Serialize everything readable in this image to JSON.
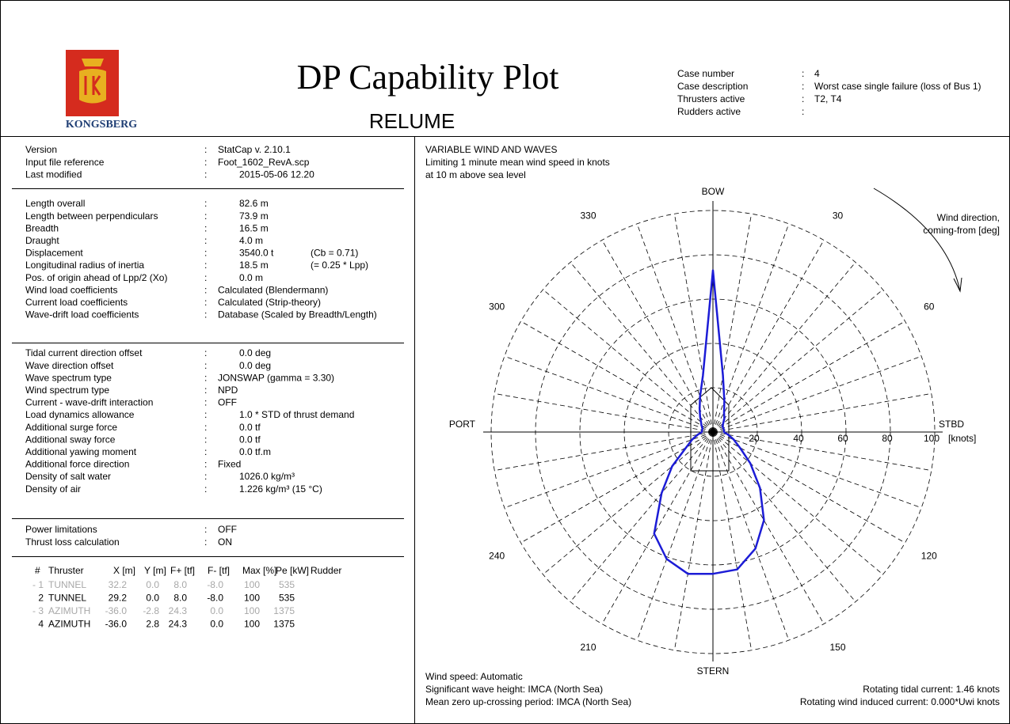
{
  "header": {
    "logo_text": "KONGSBERG",
    "title": "DP Capability Plot",
    "subtitle": "RELUME",
    "case": [
      [
        "Case number",
        ":",
        "4"
      ],
      [
        "Case description",
        ":",
        "Worst case single failure (loss of Bus 1)"
      ],
      [
        "Thrusters active",
        ":",
        "T2, T4"
      ],
      [
        "Rudders active",
        ":"
      ]
    ]
  },
  "details": [
    [
      [
        "Version",
        ":",
        "StatCap v. 2.10.1"
      ],
      [
        "Input file reference",
        ":",
        "Foot_1602_RevA.scp"
      ],
      [
        "Last modified",
        ":",
        "2015-05-06 12.20"
      ]
    ],
    [
      [
        "Length overall",
        ":",
        "82.6 m"
      ],
      [
        "Length between perpendiculars",
        ":",
        "73.9 m"
      ],
      [
        "Breadth",
        ":",
        "16.5 m"
      ],
      [
        "Draught",
        ":",
        "4.0 m"
      ],
      [
        "Displacement",
        ":",
        "3540.0 t",
        "(Cb = 0.71)"
      ],
      [
        "Longitudinal radius of inertia",
        ":",
        "18.5 m",
        "(= 0.25 * Lpp)"
      ],
      [
        "Pos. of origin ahead of Lpp/2 (Xo)",
        ":",
        "0.0 m"
      ],
      [
        "Wind load coefficients",
        ":",
        "Calculated (Blendermann)"
      ],
      [
        "Current load coefficients",
        ":",
        "Calculated (Strip-theory)"
      ],
      [
        "Wave-drift load coefficients",
        ":",
        "Database (Scaled by Breadth/Length)"
      ]
    ],
    [
      [
        "Tidal current direction offset",
        ":",
        "0.0 deg"
      ],
      [
        "Wave direction offset",
        ":",
        "0.0 deg"
      ],
      [
        "Wave spectrum type",
        ":",
        "JONSWAP (gamma = 3.30)"
      ],
      [
        "Wind spectrum type",
        ":",
        "NPD"
      ],
      [
        "Current - wave-drift interaction",
        ":",
        "OFF"
      ],
      [
        "Load dynamics allowance",
        ":",
        "1.0 * STD of thrust demand"
      ],
      [
        "Additional surge force",
        ":",
        "0.0 tf"
      ],
      [
        "Additional sway force",
        ":",
        "0.0 tf"
      ],
      [
        "Additional yawing moment",
        ":",
        "0.0 tf.m"
      ],
      [
        "Additional force direction",
        ":",
        "Fixed"
      ],
      [
        "Density of salt water",
        ":",
        "1026.0 kg/m³"
      ],
      [
        "Density of air",
        ":",
        "1.226 kg/m³ (15 °C)"
      ]
    ],
    [
      [
        "Power limitations",
        ":",
        "OFF"
      ],
      [
        "Thrust loss calculation",
        ":",
        "ON"
      ]
    ]
  ],
  "thrusters": {
    "columns": [
      "#",
      "Thruster",
      "X [m]",
      "Y [m]",
      "F+ [tf]",
      "F- [tf]",
      "Max [%]",
      "Pe [kW]",
      "Rudder"
    ],
    "rows": [
      {
        "no": "- 1",
        "name": "TUNNEL",
        "values": [
          "32.2",
          "0.0",
          "8.0",
          "-8.0",
          "100",
          "535"
        ],
        "active": false
      },
      {
        "no": "2",
        "name": "TUNNEL",
        "values": [
          "29.2",
          "0.0",
          "8.0",
          "-8.0",
          "100",
          "535"
        ],
        "active": true
      },
      {
        "no": "- 3",
        "name": "AZIMUTH",
        "values": [
          "-36.0",
          "-2.8",
          "24.3",
          "0.0",
          "100",
          "1375"
        ],
        "active": false
      },
      {
        "no": "4",
        "name": "AZIMUTH",
        "values": [
          "-36.0",
          "2.8",
          "24.3",
          "0.0",
          "100",
          "1375"
        ],
        "active": true
      }
    ]
  },
  "chart_data": {
    "type": "polar",
    "title": "VARIABLE WIND AND WAVES",
    "subtitle": [
      "Limiting 1 minute mean wind speed in knots",
      "at 10 m above sea level"
    ],
    "direction_note": [
      "Wind direction,",
      "coming-from [deg]"
    ],
    "directions": [
      0,
      10,
      20,
      30,
      40,
      50,
      60,
      70,
      80,
      90,
      100,
      110,
      120,
      130,
      140,
      150,
      160,
      170,
      180,
      190,
      200,
      210,
      220,
      230,
      240,
      250,
      260,
      270,
      280,
      290,
      300,
      310,
      320,
      330,
      340,
      350
    ],
    "values": [
      73,
      26,
      15,
      10,
      8,
      6,
      5,
      5,
      5,
      5,
      7,
      10,
      14,
      22,
      33,
      46,
      56,
      63,
      64,
      65,
      61,
      53,
      36,
      24,
      14,
      10,
      7,
      5,
      5,
      5,
      6,
      7,
      9,
      12,
      17,
      26
    ],
    "color": "#1c1cd6",
    "rlim": [
      0,
      100
    ],
    "rticks": [
      20,
      40,
      60,
      80,
      100
    ],
    "r_unit": "[knots]",
    "angle_labels": [
      30,
      60,
      120,
      150,
      210,
      240,
      300,
      330
    ],
    "compass": [
      {
        "value": 0,
        "label": "BOW"
      },
      {
        "value": 90,
        "label": "STBD"
      },
      {
        "value": 180,
        "label": "STERN"
      },
      {
        "value": 270,
        "label": "PORT"
      }
    ],
    "footer_left": [
      "Wind speed: Automatic",
      "Significant wave height: IMCA (North Sea)",
      "Mean zero up-crossing period: IMCA (North Sea)"
    ],
    "footer_right": [
      "Rotating tidal current: 1.46 knots",
      "Rotating wind induced current: 0.000*Uwi knots"
    ]
  }
}
